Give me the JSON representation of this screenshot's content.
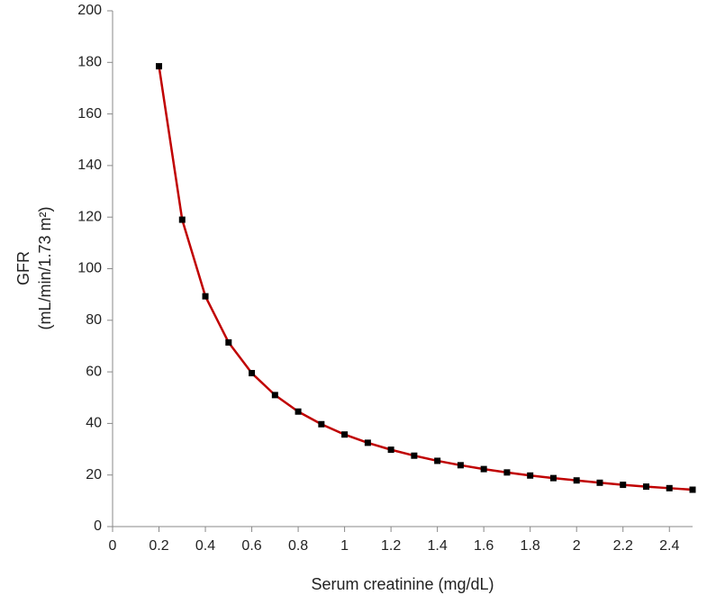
{
  "chart_data": {
    "type": "line",
    "y_label_lines": [
      "GFR",
      "(mL/min/1.73 m²)"
    ],
    "x_label": "Serum creatinine (mg/dL)",
    "x": [
      0.2,
      0.3,
      0.4,
      0.5,
      0.6,
      0.7,
      0.8,
      0.9,
      1,
      1.1,
      1.2,
      1.3,
      1.4,
      1.5,
      1.6,
      1.7,
      1.8,
      1.9,
      2,
      2.1,
      2.2,
      2.3,
      2.4,
      2.5
    ],
    "series": [
      {
        "color": "#c00000",
        "marker_color": "#000000",
        "values": [
          178.5,
          119,
          89.3,
          71.4,
          59.5,
          51,
          44.6,
          39.7,
          35.7,
          32.5,
          29.8,
          27.5,
          25.5,
          23.8,
          22.3,
          21,
          19.8,
          18.8,
          17.9,
          17,
          16.2,
          15.5,
          14.9,
          14.3
        ]
      }
    ],
    "xlim": [
      0,
      2.5
    ],
    "xticks": [
      0,
      0.2,
      0.4,
      0.6,
      0.8,
      1,
      1.2,
      1.4,
      1.6,
      1.8,
      2,
      2.2,
      2.4
    ],
    "ylim": [
      0,
      200
    ],
    "yticks": [
      0,
      20,
      40,
      60,
      80,
      100,
      120,
      140,
      160,
      180,
      200
    ],
    "grid": false
  }
}
